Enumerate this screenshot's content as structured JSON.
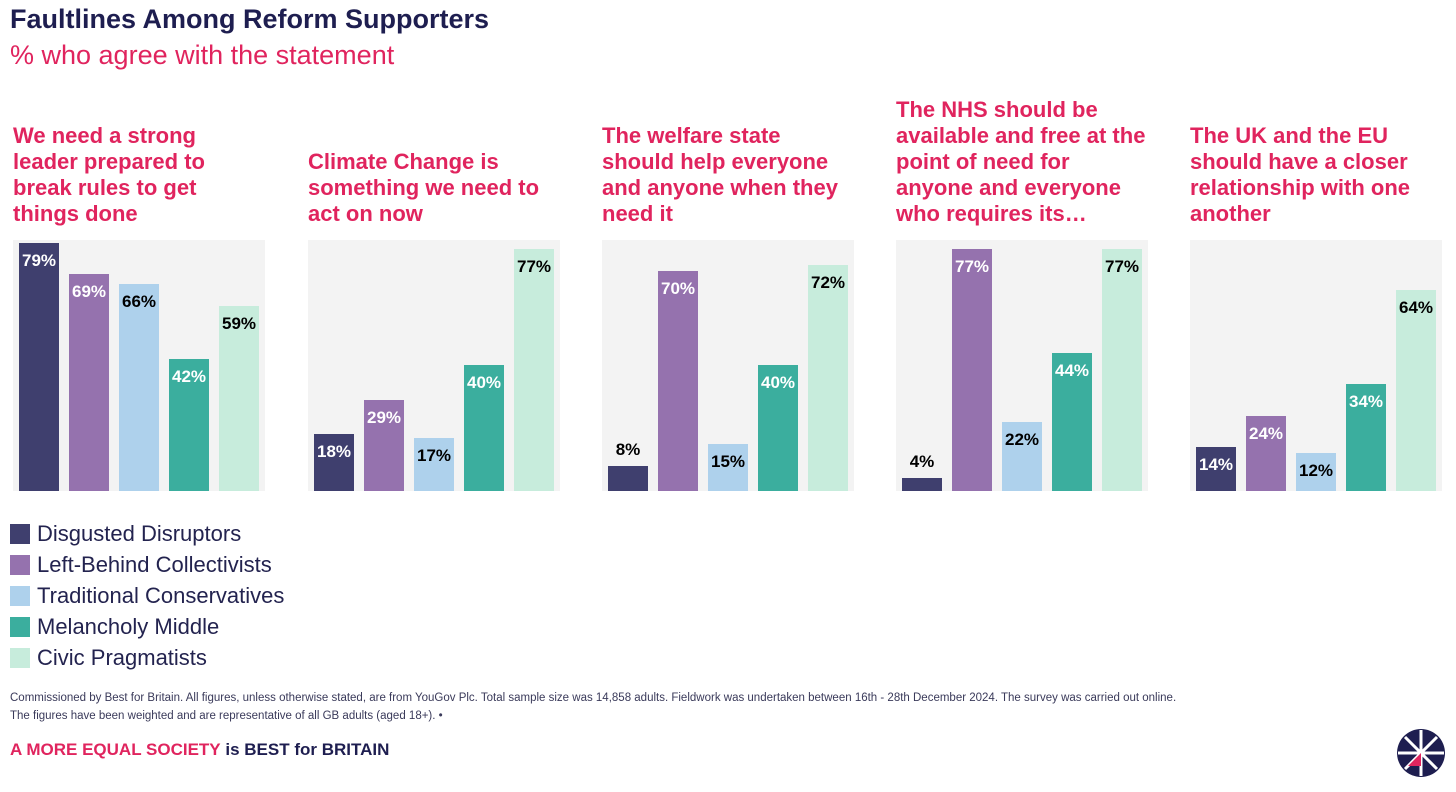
{
  "header": {
    "title": "Faultlines Among Reform Supporters",
    "subtitle": "% who agree with the statement"
  },
  "chart_data": {
    "type": "bar",
    "title": "Faultlines Among Reform Supporters",
    "subtitle": "% who agree with the statement",
    "ylim": [
      0,
      80
    ],
    "grid": false,
    "legend_placement": "bottom-left",
    "series_names": [
      "Disgusted Disruptors",
      "Left-Behind Collectivists",
      "Traditional Conservatives",
      "Melancholy Middle",
      "Civic Pragmatists"
    ],
    "colors": [
      "#3f3f6e",
      "#9572ae",
      "#aed1ec",
      "#3bae9e",
      "#c7ecdc"
    ],
    "label_colors": [
      "#ffffff",
      "#ffffff",
      "#000000",
      "#ffffff",
      "#000000"
    ],
    "panels": [
      {
        "title": "We need a strong leader prepared to break rules to get things done",
        "values": [
          79,
          69,
          66,
          42,
          59
        ]
      },
      {
        "title": "Climate Change is something we need to act on now",
        "values": [
          18,
          29,
          17,
          40,
          77
        ]
      },
      {
        "title": "The welfare state should help everyone and anyone when they need it",
        "values": [
          8,
          70,
          15,
          40,
          72
        ]
      },
      {
        "title": "The NHS should be available and free at the point of need for anyone and everyone who requires its…",
        "values": [
          4,
          77,
          22,
          44,
          77
        ]
      },
      {
        "title": "The UK and the EU should have a closer relationship with one another",
        "values": [
          14,
          24,
          12,
          34,
          64
        ]
      }
    ]
  },
  "footer": {
    "note_line1": "Commissioned by Best for Britain. All figures, unless otherwise stated, are from YouGov Plc. Total sample size was 14,858 adults. Fieldwork was undertaken between 16th - 28th December 2024. The survey was carried out online.",
    "note_line2": "The figures have been weighted and are representative of all GB adults (aged 18+). •",
    "tagline_pink": "A MORE EQUAL SOCIETY",
    "tagline_navy": " is BEST for BRITAIN"
  }
}
